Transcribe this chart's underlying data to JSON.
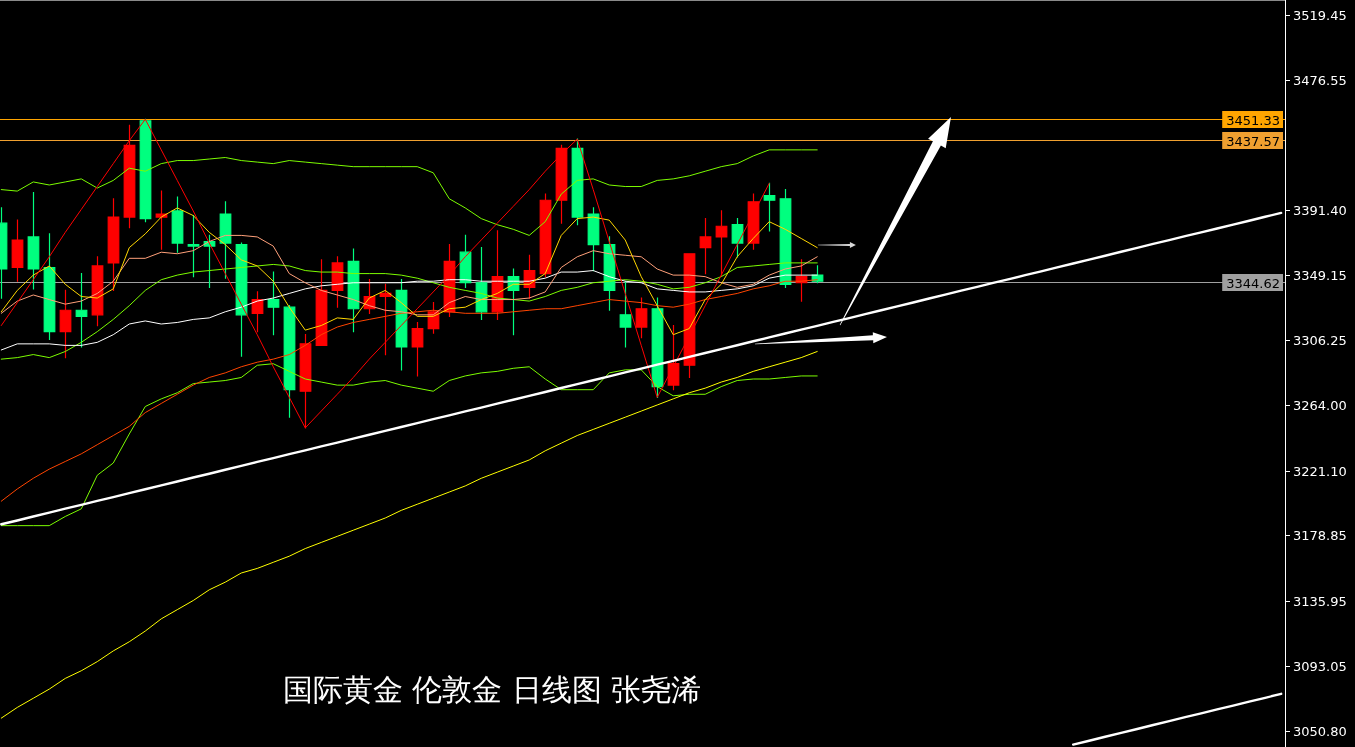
{
  "chart_data": {
    "type": "candlestick",
    "title": "国际黄金 伦敦金 日线图 张尧浠",
    "categories": [
      null,
      null,
      null,
      null,
      null,
      null,
      null,
      null,
      null,
      null,
      null,
      null,
      null,
      null,
      null,
      null,
      null,
      null,
      null,
      null,
      null,
      null,
      null,
      null,
      null,
      null,
      null,
      null,
      null,
      null,
      null,
      null,
      null,
      null,
      null,
      null,
      null,
      null,
      null,
      null,
      null,
      null,
      null,
      null,
      null,
      null,
      null,
      null,
      null,
      null,
      null,
      null,
      null,
      null,
      null,
      null,
      null,
      null,
      null,
      null,
      null,
      null,
      null,
      null,
      null,
      null,
      null,
      null,
      null,
      null,
      null,
      null,
      null,
      null,
      null,
      null,
      null,
      null,
      null,
      null,
      null
    ],
    "ohlc": [
      [
        3383,
        3393,
        3334,
        3353
      ],
      [
        3354,
        3385,
        3345,
        3372
      ],
      [
        3374,
        3403,
        3340,
        3353
      ],
      [
        3354,
        3376,
        3307,
        3312
      ],
      [
        3312,
        3339,
        3295,
        3326
      ],
      [
        3326,
        3350,
        3302,
        3322
      ],
      [
        3323,
        3361,
        3316,
        3355
      ],
      [
        3357,
        3399,
        3339,
        3387
      ],
      [
        3387,
        3447,
        3380,
        3434
      ],
      [
        3450,
        3451,
        3384,
        3386
      ],
      [
        3387,
        3404,
        3366,
        3389
      ],
      [
        3391,
        3400,
        3364,
        3370
      ],
      [
        3369,
        3388,
        3348,
        3368
      ],
      [
        3371,
        3375,
        3341,
        3368
      ],
      [
        3389,
        3397,
        3347,
        3370
      ],
      [
        3369,
        3370,
        3296,
        3323
      ],
      [
        3324,
        3338,
        3312,
        3333
      ],
      [
        3333,
        3351,
        3310,
        3328
      ],
      [
        3328,
        3329,
        3256,
        3274
      ],
      [
        3273,
        3310,
        3249,
        3304
      ],
      [
        3303,
        3359,
        3303,
        3339
      ],
      [
        3339,
        3361,
        3328,
        3357
      ],
      [
        3358,
        3366,
        3312,
        3327
      ],
      [
        3327,
        3346,
        3324,
        3335
      ],
      [
        3335,
        3343,
        3297,
        3337
      ],
      [
        3339,
        3346,
        3287,
        3302
      ],
      [
        3302,
        3318,
        3283,
        3314
      ],
      [
        3314,
        3331,
        3311,
        3325
      ],
      [
        3325,
        3369,
        3322,
        3358
      ],
      [
        3364,
        3375,
        3341,
        3344
      ],
      [
        3344,
        3367,
        3320,
        3325
      ],
      [
        3325,
        3378,
        3320,
        3348
      ],
      [
        3348,
        3353,
        3310,
        3339
      ],
      [
        3341,
        3362,
        3334,
        3352
      ],
      [
        3350,
        3402,
        3348,
        3398
      ],
      [
        3398,
        3434,
        3383,
        3432
      ],
      [
        3432,
        3438,
        3382,
        3387
      ],
      [
        3389,
        3393,
        3352,
        3369
      ],
      [
        3369,
        3374,
        3326,
        3339
      ],
      [
        3323,
        3345,
        3302,
        3315
      ],
      [
        3315,
        3334,
        3308,
        3327
      ],
      [
        3327,
        3334,
        3269,
        3276
      ],
      [
        3277,
        3316,
        3274,
        3291
      ],
      [
        3290,
        3363,
        3282,
        3363
      ],
      [
        3367,
        3386,
        3350,
        3374
      ],
      [
        3374,
        3391,
        3349,
        3381
      ],
      [
        3382,
        3386,
        3361,
        3370
      ],
      [
        3370,
        3402,
        3366,
        3397
      ],
      [
        3401,
        3409,
        3378,
        3398
      ],
      [
        3399,
        3405,
        3341,
        3343
      ],
      [
        3344,
        3359,
        3332,
        3348
      ],
      [
        3349,
        3355,
        3344,
        3345
      ],
      null,
      null,
      null,
      null,
      null,
      null,
      null,
      null,
      null,
      null,
      null,
      null,
      null,
      null,
      null,
      null,
      null,
      null,
      null,
      null,
      null,
      null,
      null,
      null,
      null,
      null,
      null,
      null,
      null
    ],
    "colors": [
      "#00ff7f",
      "#ff0000",
      "#00ff7f",
      "#00ff7f",
      "#ff0000",
      "#00ff7f",
      "#ff0000",
      "#ff0000",
      "#ff0000",
      "#00ff7f",
      "#ff0000",
      "#00ff7f",
      "#00ff7f",
      "#00ff7f",
      "#00ff7f",
      "#00ff7f",
      "#ff0000",
      "#00ff7f",
      "#00ff7f",
      "#ff0000",
      "#ff0000",
      "#ff0000",
      "#00ff7f",
      "#ff0000",
      "#ff0000",
      "#00ff7f",
      "#ff0000",
      "#ff0000",
      "#ff0000",
      "#00ff7f",
      "#00ff7f",
      "#ff0000",
      "#00ff7f",
      "#ff0000",
      "#ff0000",
      "#ff0000",
      "#00ff7f",
      "#00ff7f",
      "#00ff7f",
      "#00ff7f",
      "#ff0000",
      "#00ff7f",
      "#ff0000",
      "#ff0000",
      "#ff0000",
      "#ff0000",
      "#00ff7f",
      "#ff0000",
      "#00ff7f",
      "#00ff7f",
      "#ff0000",
      "#00ff7f",
      null,
      null,
      null,
      null,
      null,
      null,
      null,
      null,
      null,
      null,
      null,
      null,
      null,
      null,
      null,
      null,
      null,
      null,
      null,
      null,
      null,
      null,
      null,
      null,
      null,
      null,
      null,
      null,
      null
    ],
    "series": [
      {
        "type": "line",
        "color": "#7cfc00",
        "values": [
          3405,
          3404,
          3410,
          3408,
          3410,
          3412,
          3406,
          3411,
          3419,
          3417,
          3422,
          3424,
          3424,
          3425,
          3426,
          3424,
          3423,
          3422,
          3424,
          3423,
          3422,
          3421,
          3420,
          3420,
          3420,
          3420,
          3420,
          3416,
          3399,
          3393,
          3386,
          3382,
          3379,
          3375,
          3384,
          3402,
          3411,
          3412,
          3408,
          3407,
          3407,
          3411,
          3412,
          3414,
          3417,
          3420,
          3422,
          3427,
          3431,
          3431,
          3431,
          3431,
          null,
          null,
          null,
          null,
          null,
          null,
          null,
          null,
          null,
          null,
          null,
          null,
          null,
          null,
          null,
          null,
          null,
          null,
          null,
          null,
          null,
          null,
          null,
          null,
          null,
          null,
          null,
          null,
          null
        ]
      },
      {
        "type": "line",
        "color": "#7cfc00",
        "values": [
          3294,
          3295,
          3297,
          3295,
          3299,
          3305,
          3312,
          3320,
          3329,
          3339,
          3346,
          3349,
          3351,
          3352,
          3353,
          3354,
          3355,
          3356,
          3355,
          3352,
          3351,
          3351,
          3350,
          3350,
          3350,
          3349,
          3347,
          3344,
          3341,
          3339,
          3337,
          3334,
          3333,
          3332,
          3335,
          3339,
          3341,
          3344,
          3345,
          3346,
          3345,
          3343,
          3340,
          3341,
          3344,
          3348,
          3354,
          3355,
          3356,
          3357,
          3357,
          3357,
          null,
          null,
          null,
          null,
          null,
          null,
          null,
          null,
          null,
          null,
          null,
          null,
          null,
          null,
          null,
          null,
          null,
          null,
          null,
          null,
          null,
          null,
          null,
          null,
          null,
          null,
          null,
          null,
          null
        ]
      },
      {
        "type": "line",
        "color": "#7cfc00",
        "values": [
          3185,
          3185,
          3185,
          3185,
          3191,
          3196,
          3218,
          3226,
          3245,
          3263,
          3268,
          3272,
          3278,
          3279,
          3280,
          3282,
          3290,
          3291,
          3286,
          3281,
          3279,
          3277,
          3277,
          3279,
          3280,
          3277,
          3275,
          3273,
          3280,
          3283,
          3285,
          3286,
          3288,
          3289,
          3281,
          3274,
          3274,
          3274,
          3285,
          3287,
          3287,
          3276,
          3270,
          3271,
          3271,
          3276,
          3280,
          3281,
          3281,
          3282,
          3283,
          3283,
          null,
          null,
          null,
          null,
          null,
          null,
          null,
          null,
          null,
          null,
          null,
          null,
          null,
          null,
          null,
          null,
          null,
          null,
          null,
          null,
          null,
          null,
          null,
          null,
          null,
          null,
          null,
          null,
          null
        ]
      },
      {
        "type": "line",
        "color": "#ffff00",
        "values": [
          3059,
          3066,
          3072,
          3078,
          3085,
          3090,
          3096,
          3103,
          3109,
          3116,
          3124,
          3130,
          3136,
          3143,
          3148,
          3154,
          3157,
          3161,
          3165,
          3170,
          3174,
          3178,
          3182,
          3186,
          3190,
          3195,
          3199,
          3203,
          3207,
          3211,
          3216,
          3220,
          3224,
          3228,
          3234,
          3239,
          3244,
          3248,
          3252,
          3256,
          3260,
          3264,
          3268,
          3272,
          3275,
          3279,
          3282,
          3286,
          3289,
          3292,
          3295,
          3299,
          null,
          null,
          null,
          null,
          null,
          null,
          null,
          null,
          null,
          null,
          null,
          null,
          null,
          null,
          null,
          null,
          null,
          null,
          null,
          null,
          null,
          null,
          null,
          null,
          null,
          null,
          null,
          null,
          null
        ]
      },
      {
        "type": "line",
        "color": "#ff4500",
        "values": [
          3201,
          3209,
          3216,
          3222,
          3227,
          3232,
          3238,
          3244,
          3250,
          3259,
          3265,
          3271,
          3277,
          3282,
          3285,
          3289,
          3292,
          3294,
          3297,
          3303,
          3310,
          3315,
          3318,
          3320,
          3322,
          3324,
          3325,
          3326,
          3325,
          3324,
          3324,
          3324,
          3325,
          3326,
          3327,
          3327,
          3329,
          3331,
          3333,
          3332,
          3331,
          3329,
          3328,
          3330,
          3333,
          3335,
          3337,
          3340,
          3342,
          3345,
          3345,
          3346,
          null,
          null,
          null,
          null,
          null,
          null,
          null,
          null,
          null,
          null,
          null,
          null,
          null,
          null,
          null,
          null,
          null,
          null,
          null,
          null,
          null,
          null,
          null,
          null,
          null,
          null,
          null,
          null,
          null
        ]
      },
      {
        "type": "line",
        "color": "#ffffff",
        "values": [
          3300,
          3304,
          3304,
          3304,
          3303,
          3303,
          3305,
          3310,
          3317,
          3319,
          3317,
          3318,
          3320,
          3321,
          3325,
          3328,
          3332,
          3334,
          3337,
          3340,
          3342,
          3343,
          3344,
          3344,
          3344,
          3344,
          3345,
          3345,
          3346,
          3346,
          3345,
          3345,
          3345,
          3345,
          3347,
          3351,
          3351,
          3352,
          3348,
          3345,
          3344,
          3340,
          3339,
          3338,
          3338,
          3339,
          3340,
          3342,
          3347,
          3349,
          3349,
          3349,
          null,
          null,
          null,
          null,
          null,
          null,
          null,
          null,
          null,
          null,
          null,
          null,
          null,
          null,
          null,
          null,
          null,
          null,
          null,
          null,
          null,
          null,
          null,
          null,
          null,
          null,
          null,
          null,
          null
        ]
      },
      {
        "type": "line",
        "color": "#ffa07a",
        "values": [
          3324,
          3332,
          3336,
          3333,
          3330,
          3332,
          3337,
          3345,
          3360,
          3360,
          3364,
          3363,
          3365,
          3371,
          3375,
          3375,
          3374,
          3368,
          3350,
          3344,
          3339,
          3336,
          3333,
          3329,
          3326,
          3325,
          3323,
          3323,
          3331,
          3335,
          3333,
          3333,
          3333,
          3334,
          3338,
          3354,
          3361,
          3365,
          3363,
          3362,
          3361,
          3353,
          3349,
          3349,
          3348,
          3344,
          3341,
          3343,
          3349,
          3353,
          3355,
          3361,
          null,
          null,
          null,
          null,
          null,
          null,
          null,
          null,
          null,
          null,
          null,
          null,
          null,
          null,
          null,
          null,
          null,
          null,
          null,
          null,
          null,
          null,
          null,
          null,
          null,
          null,
          null,
          null,
          null
        ]
      },
      {
        "type": "line",
        "color": "#ffd700",
        "values": [
          3325,
          3339,
          3349,
          3355,
          3343,
          3335,
          3334,
          3340,
          3367,
          3376,
          3387,
          3393,
          3388,
          3377,
          3369,
          3359,
          3355,
          3345,
          3328,
          3313,
          3316,
          3321,
          3320,
          3334,
          3339,
          3331,
          3322,
          3322,
          3327,
          3328,
          3333,
          3337,
          3343,
          3343,
          3350,
          3375,
          3386,
          3387,
          3385,
          3372,
          3348,
          3329,
          3310,
          3314,
          3333,
          3343,
          3361,
          3373,
          3384,
          3379,
          3373,
          3367,
          null,
          null,
          null,
          null,
          null,
          null,
          null,
          null,
          null,
          null,
          null,
          null,
          null,
          null,
          null,
          null,
          null,
          null,
          null,
          null,
          null,
          null,
          null,
          null,
          null,
          null,
          null,
          null,
          null
        ]
      },
      {
        "type": "line",
        "color": "#ff0000",
        "values": [
          3316,
          3331,
          3346,
          3361,
          3377,
          3392,
          3407,
          3422,
          3437,
          3451,
          3431,
          3411,
          3391,
          3370,
          3350,
          3330,
          3310,
          3289,
          3269,
          3249,
          3260,
          3271,
          3282,
          3294,
          3305,
          3316,
          3327,
          3338,
          3349,
          3361,
          3372,
          3383,
          3394,
          3405,
          3417,
          3428,
          3438,
          3405,
          3371,
          3337,
          3303,
          3269,
          3289,
          3309,
          3329,
          3349,
          3369,
          3389,
          3409,
          null,
          null,
          null,
          null,
          null,
          null,
          null,
          null,
          null,
          null,
          null,
          null,
          null,
          null,
          null,
          null,
          null,
          null,
          null,
          null,
          null,
          null,
          null,
          null,
          null,
          null,
          null,
          null,
          null,
          null,
          null,
          null
        ]
      },
      {
        "type": "line",
        "color": "#ffffff",
        "values": [
          3185.9,
          3188.4,
          3191.0,
          3193.5,
          3196.1,
          3198.6,
          3201.2,
          3203.7,
          3206.3,
          3208.8,
          3211.4,
          3213.9,
          3216.5,
          3219.0,
          3221.6,
          3224.1,
          3226.7,
          3229.2,
          3231.8,
          3234.3,
          3236.9,
          3239.4,
          3242.0,
          3244.5,
          3247.1,
          3249.6,
          3252.1,
          3254.7,
          3257.2,
          3259.8,
          3262.3,
          3264.9,
          3267.4,
          3270.0,
          3272.5,
          3275.1,
          3277.6,
          3280.2,
          3282.7,
          3285.3,
          3287.8,
          3290.4,
          3292.9,
          3295.5,
          3298.0,
          3300.6,
          3303.1,
          3305.7,
          3308.2,
          3310.8,
          3313.3,
          3315.8,
          3318.4,
          3320.9,
          3323.5,
          3326.0,
          3328.6,
          3331.1,
          3333.7,
          3336.2,
          3338.8,
          3341.3,
          3343.9,
          3346.4,
          3349.0,
          3351.5,
          3354.1,
          3356.6,
          3359.2,
          3361.7,
          3364.3,
          3366.8,
          3369.4,
          3371.9,
          3374.5,
          3377.0,
          3379.5,
          3382.1,
          3384.6,
          3387.2,
          3389.7
        ]
      },
      {
        "type": "line",
        "color": "#ffffff",
        "values": [
          null,
          null,
          null,
          null,
          null,
          null,
          null,
          null,
          null,
          null,
          null,
          null,
          null,
          null,
          null,
          null,
          null,
          null,
          null,
          null,
          null,
          null,
          null,
          null,
          null,
          null,
          null,
          null,
          null,
          null,
          null,
          null,
          null,
          null,
          null,
          null,
          null,
          null,
          null,
          null,
          null,
          null,
          null,
          null,
          null,
          null,
          null,
          null,
          null,
          null,
          null,
          null,
          null,
          null,
          null,
          null,
          null,
          null,
          null,
          null,
          null,
          null,
          null,
          null,
          null,
          null,
          null,
          3041.7,
          3044.2,
          3046.8,
          3049.3,
          3051.9,
          3054.5,
          3057.0,
          3059.6,
          3062.1,
          3064.7,
          3067.2,
          3069.8,
          3072.3,
          3074.9
        ]
      }
    ],
    "ylim": [
      3040.1,
      3529.1
    ],
    "yticks": [
      {
        "value": 3050.8,
        "label": "3050.80"
      },
      {
        "value": 3093.05,
        "label": "3093.05"
      },
      {
        "value": 3135.95,
        "label": "3135.95"
      },
      {
        "value": 3178.85,
        "label": "3178.85"
      },
      {
        "value": 3221.1,
        "label": "3221.10"
      },
      {
        "value": 3264,
        "label": "3264.00"
      },
      {
        "value": 3306.25,
        "label": "3306.25"
      },
      {
        "value": 3349.15,
        "label": "3349.15"
      },
      {
        "value": 3391.4,
        "label": "3391.40"
      },
      {
        "value": 3476.55,
        "label": "3476.55"
      },
      {
        "value": 3519.45,
        "label": "3519.45"
      }
    ],
    "tick_labels": "y",
    "ref_lines": [
      {
        "axis": "y",
        "value": 3451.33,
        "label": "3451.33",
        "color": "#ffa500"
      },
      {
        "axis": "y",
        "value": 3437.57,
        "label": "3437.57",
        "color": "#f0a030"
      },
      {
        "axis": "y",
        "value": 3344.62,
        "label": "3344.62",
        "color": "#a0a0a0"
      }
    ]
  }
}
